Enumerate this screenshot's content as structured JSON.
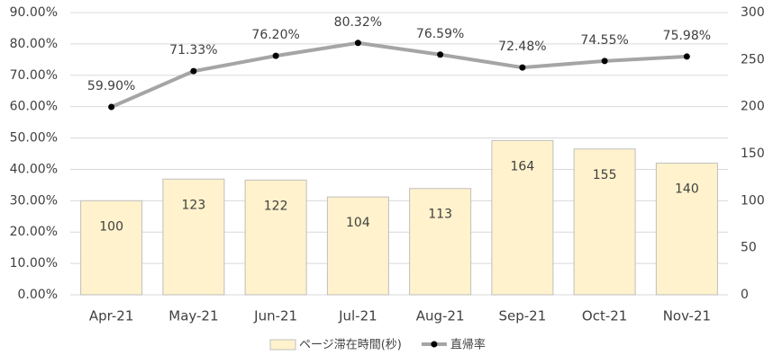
{
  "chart_data": {
    "type": "combo",
    "categories": [
      "Apr-21",
      "May-21",
      "Jun-21",
      "Jul-21",
      "Aug-21",
      "Sep-21",
      "Oct-21",
      "Nov-21"
    ],
    "series": [
      {
        "name": "ページ滞在時間(秒)",
        "type": "bar",
        "axis": "y2",
        "color": "#fff2cc",
        "values": [
          100,
          123,
          122,
          104,
          113,
          164,
          155,
          140
        ]
      },
      {
        "name": "直帰率",
        "type": "line",
        "color": "#a5a5a5",
        "values": [
          59.9,
          71.33,
          76.2,
          80.32,
          76.59,
          72.48,
          74.55,
          75.98
        ],
        "value_labels": [
          "59.90%",
          "71.33%",
          "76.20%",
          "80.32%",
          "76.59%",
          "72.48%",
          "74.55%",
          "75.98%"
        ]
      }
    ],
    "ylim": [
      0,
      90
    ],
    "yticks": [
      {
        "value": 0,
        "label": "0.00%"
      },
      {
        "value": 10,
        "label": "10.00%"
      },
      {
        "value": 20,
        "label": "20.00%"
      },
      {
        "value": 30,
        "label": "30.00%"
      },
      {
        "value": 40,
        "label": "40.00%"
      },
      {
        "value": 50,
        "label": "50.00%"
      },
      {
        "value": 60,
        "label": "60.00%"
      },
      {
        "value": 70,
        "label": "70.00%"
      },
      {
        "value": 80,
        "label": "80.00%"
      },
      {
        "value": 90,
        "label": "90.00%"
      }
    ],
    "y2lim": [
      0,
      300
    ],
    "y2ticks": [
      0,
      50,
      100,
      150,
      200,
      250,
      300
    ],
    "grid": true,
    "legend": "bottom"
  }
}
